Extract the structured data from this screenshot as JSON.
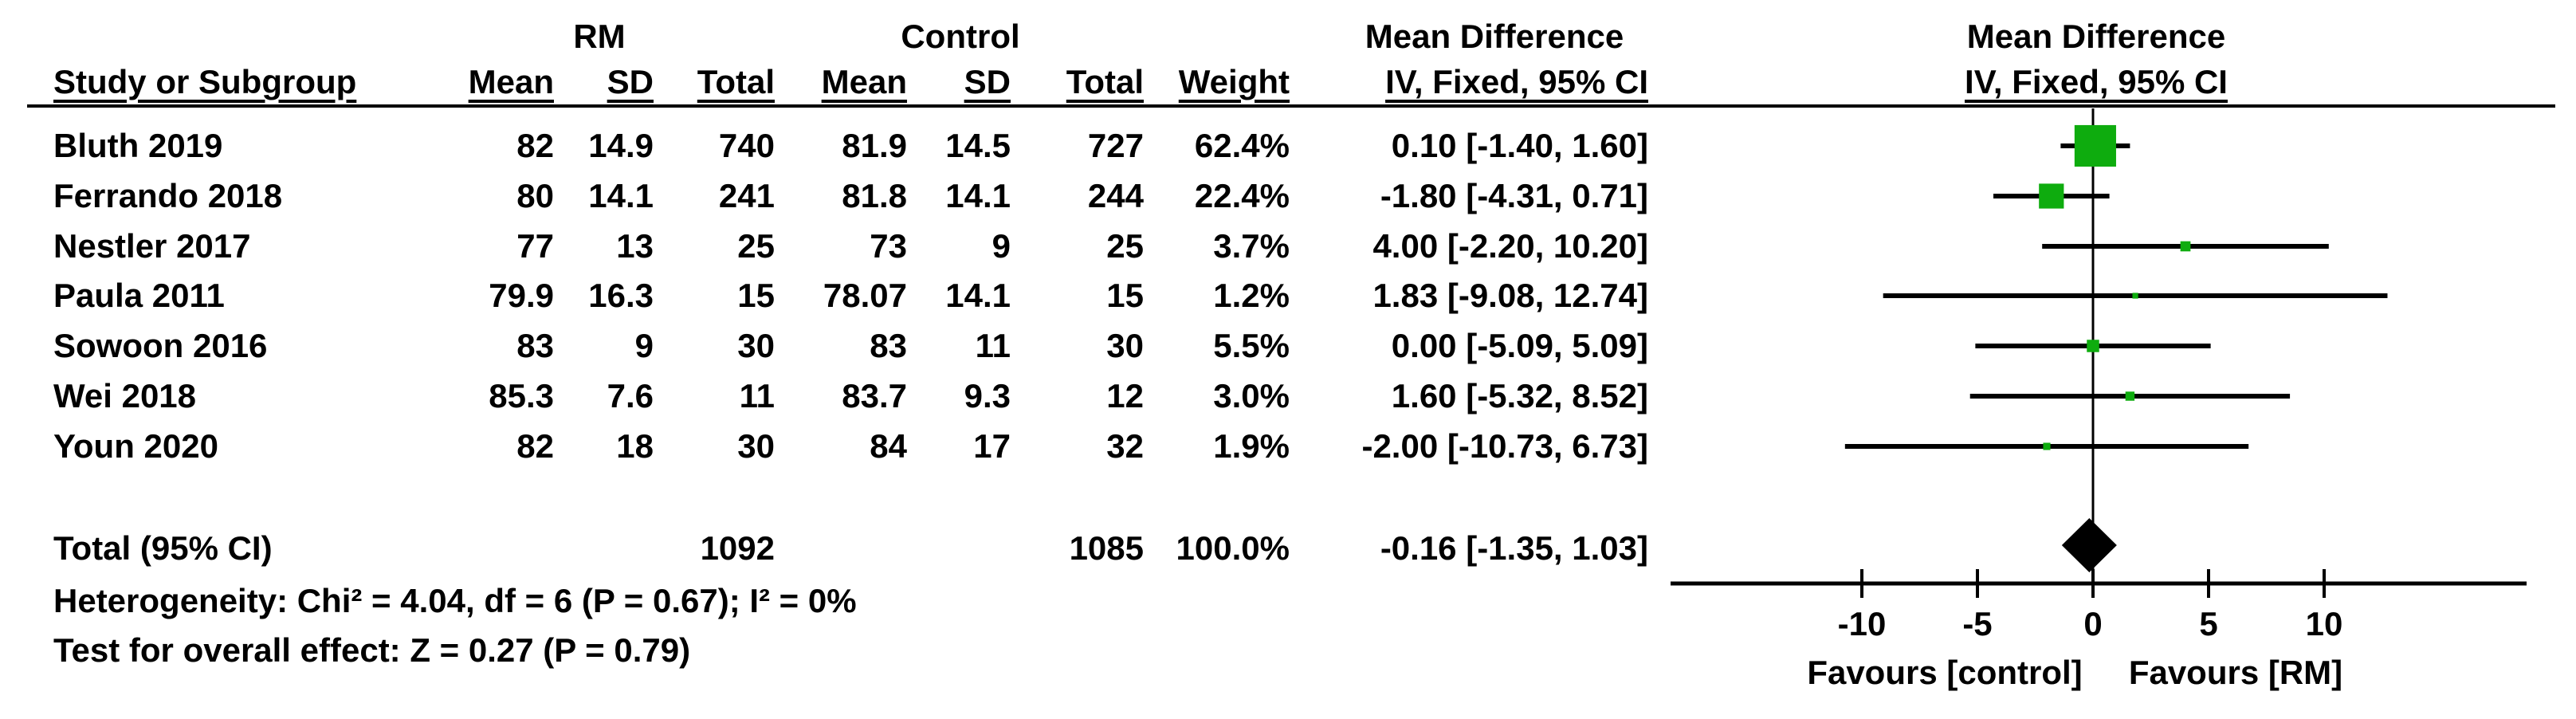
{
  "header": {
    "group_rm": "RM",
    "group_control": "Control",
    "md_text_line1": "Mean Difference",
    "md_text_line2": "IV, Fixed, 95% CI",
    "md_plot_line1": "Mean Difference",
    "md_plot_line2": "IV, Fixed, 95% CI"
  },
  "columns": {
    "study": "Study or Subgroup",
    "rm_mean": "Mean",
    "rm_sd": "SD",
    "rm_total": "Total",
    "ctrl_mean": "Mean",
    "ctrl_sd": "SD",
    "ctrl_total": "Total",
    "weight": "Weight",
    "ci": "IV, Fixed, 95% CI"
  },
  "chart_data": {
    "type": "forest",
    "effect_measure": "Mean Difference",
    "method": "IV, Fixed, 95% CI",
    "studies": [
      {
        "study": "Bluth 2019",
        "rm_mean": "82",
        "rm_sd": "14.9",
        "rm_total": "740",
        "ctrl_mean": "81.9",
        "ctrl_sd": "14.5",
        "ctrl_total": "727",
        "weight": "62.4%",
        "weight_pct": 62.4,
        "ci_label": "0.10 [-1.40, 1.60]",
        "md": 0.1,
        "ci_low": -1.4,
        "ci_high": 1.6
      },
      {
        "study": "Ferrando 2018",
        "rm_mean": "80",
        "rm_sd": "14.1",
        "rm_total": "241",
        "ctrl_mean": "81.8",
        "ctrl_sd": "14.1",
        "ctrl_total": "244",
        "weight": "22.4%",
        "weight_pct": 22.4,
        "ci_label": "-1.80 [-4.31, 0.71]",
        "md": -1.8,
        "ci_low": -4.31,
        "ci_high": 0.71
      },
      {
        "study": "Nestler 2017",
        "rm_mean": "77",
        "rm_sd": "13",
        "rm_total": "25",
        "ctrl_mean": "73",
        "ctrl_sd": "9",
        "ctrl_total": "25",
        "weight": "3.7%",
        "weight_pct": 3.7,
        "ci_label": "4.00 [-2.20, 10.20]",
        "md": 4.0,
        "ci_low": -2.2,
        "ci_high": 10.2
      },
      {
        "study": "Paula 2011",
        "rm_mean": "79.9",
        "rm_sd": "16.3",
        "rm_total": "15",
        "ctrl_mean": "78.07",
        "ctrl_sd": "14.1",
        "ctrl_total": "15",
        "weight": "1.2%",
        "weight_pct": 1.2,
        "ci_label": "1.83 [-9.08, 12.74]",
        "md": 1.83,
        "ci_low": -9.08,
        "ci_high": 12.74
      },
      {
        "study": "Sowoon 2016",
        "rm_mean": "83",
        "rm_sd": "9",
        "rm_total": "30",
        "ctrl_mean": "83",
        "ctrl_sd": "11",
        "ctrl_total": "30",
        "weight": "5.5%",
        "weight_pct": 5.5,
        "ci_label": "0.00 [-5.09, 5.09]",
        "md": 0.0,
        "ci_low": -5.09,
        "ci_high": 5.09
      },
      {
        "study": "Wei 2018",
        "rm_mean": "85.3",
        "rm_sd": "7.6",
        "rm_total": "11",
        "ctrl_mean": "83.7",
        "ctrl_sd": "9.3",
        "ctrl_total": "12",
        "weight": "3.0%",
        "weight_pct": 3.0,
        "ci_label": "1.60 [-5.32, 8.52]",
        "md": 1.6,
        "ci_low": -5.32,
        "ci_high": 8.52
      },
      {
        "study": "Youn 2020",
        "rm_mean": "82",
        "rm_sd": "18",
        "rm_total": "30",
        "ctrl_mean": "84",
        "ctrl_sd": "17",
        "ctrl_total": "32",
        "weight": "1.9%",
        "weight_pct": 1.9,
        "ci_label": "-2.00 [-10.73, 6.73]",
        "md": -2.0,
        "ci_low": -10.73,
        "ci_high": 6.73
      }
    ],
    "total": {
      "label": "Total (95% CI)",
      "rm_total": "1092",
      "ctrl_total": "1085",
      "weight": "100.0%",
      "ci_label": "-0.16 [-1.35, 1.03]",
      "md": -0.16,
      "ci_low": -1.35,
      "ci_high": 1.03
    },
    "axis": {
      "ticks": [
        -10,
        -5,
        0,
        5,
        10
      ],
      "tick_labels": [
        "-10",
        "-5",
        "0",
        "5",
        "10"
      ],
      "xmin": -18.3,
      "xmax": 18.8,
      "favours_left": "Favours [control]",
      "favours_right": "Favours [RM]"
    },
    "footnotes": {
      "heterogeneity": "Heterogeneity: Chi² = 4.04, df = 6 (P = 0.67); I² = 0%",
      "overall_effect": "Test for overall effect: Z = 0.27 (P = 0.79)"
    },
    "colors": {
      "marker_green": "#0EAC0E",
      "ink_black": "#000000"
    }
  }
}
